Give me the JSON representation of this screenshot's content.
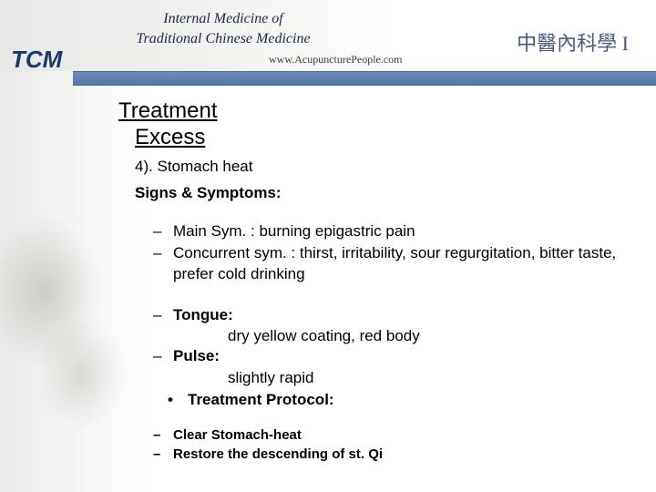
{
  "header": {
    "title_line1": "Internal Medicine of",
    "title_line2": "Traditional Chinese Medicine",
    "url": "www.AcupuncturePeople.com",
    "chinese": "中醫內科學 I",
    "logo": "TCM",
    "calligraphy": "妙"
  },
  "content": {
    "heading1": "Treatment",
    "heading2": "Excess",
    "subheading1": "4). Stomach heat",
    "subheading2": "Signs & Symptoms:",
    "bullets1": [
      "Main Sym. : burning epigastric pain",
      "Concurrent sym. : thirst, irritability, sour regurgitation, bitter taste, prefer cold drinking"
    ],
    "tongue_label": "Tongue:",
    "tongue_text": "dry yellow coating, red body",
    "pulse_label": "Pulse:",
    "pulse_text": "slightly rapid",
    "protocol_label": "Treatment Protocol:",
    "bullets3": [
      "Clear Stomach-heat",
      "Restore the descending of st. Qi"
    ]
  },
  "colors": {
    "bar": "#5878a8",
    "header_text": "#1a2a4a",
    "body_text": "#000000"
  },
  "fontsize": {
    "heading": 24,
    "body": 17,
    "small": 15
  }
}
